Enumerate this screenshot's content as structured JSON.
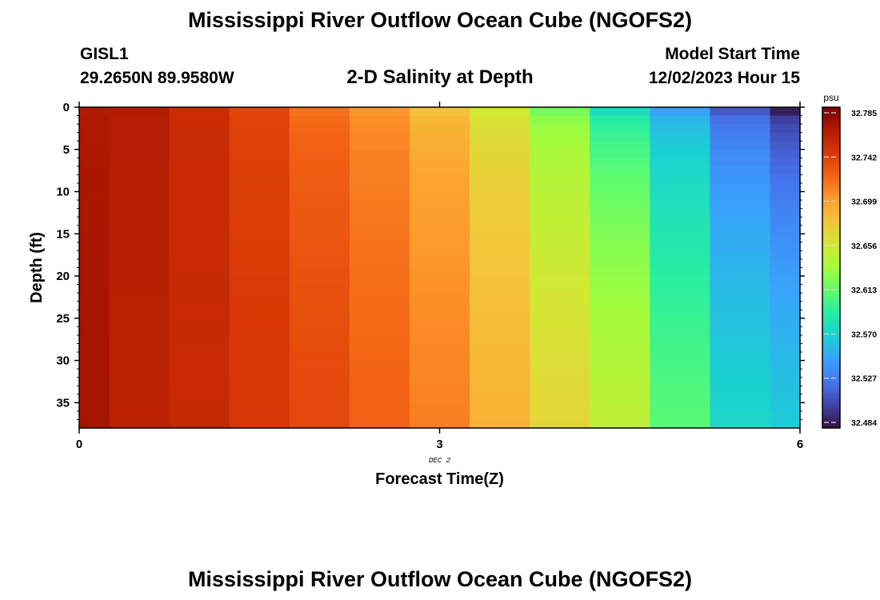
{
  "header": {
    "title": "Mississippi River Outflow Ocean Cube (NGOFS2)",
    "station": "GISL1",
    "coords": "29.2650N  89.9580W",
    "subtitle": "2-D Salinity at Depth",
    "model_start_label": "Model Start Time",
    "model_start_value": "12/02/2023 Hour 15"
  },
  "footer": {
    "title": "Mississippi River Outflow Ocean Cube (NGOFS2)"
  },
  "chart_data": {
    "type": "heatmap",
    "title": "2-D Salinity at Depth",
    "xlabel": "Forecast Time(Z)",
    "ylabel": "Depth (ft)",
    "x_ticks": [
      "0",
      "3",
      "6"
    ],
    "x_date_label": "DEC 2",
    "y_ticks": [
      "0",
      "5",
      "10",
      "15",
      "20",
      "25",
      "30",
      "35"
    ],
    "xlim": [
      0,
      6
    ],
    "ylim": [
      0,
      38
    ],
    "y_inverted": true,
    "colorbar": {
      "unit": "psu",
      "min": 32.484,
      "max": 32.785,
      "tick_labels": [
        "32.785",
        "32.742",
        "32.699",
        "32.656",
        "32.613",
        "32.570",
        "32.527",
        "32.484"
      ],
      "colors": [
        "#30123b",
        "#4145ab",
        "#4675ed",
        "#39a2fc",
        "#1bcfd4",
        "#24eca6",
        "#61fc6c",
        "#a4fc3b",
        "#d1e834",
        "#f3c63a",
        "#fe9b2d",
        "#f36315",
        "#d93806",
        "#b11901",
        "#7a0403"
      ]
    },
    "time_columns": [
      {
        "x": 0.0,
        "surface": 32.763,
        "bottom": 32.768
      },
      {
        "x": 0.5,
        "surface": 32.762,
        "bottom": 32.758
      },
      {
        "x": 1.0,
        "surface": 32.75,
        "bottom": 32.752
      },
      {
        "x": 1.5,
        "surface": 32.735,
        "bottom": 32.743
      },
      {
        "x": 2.0,
        "surface": 32.715,
        "bottom": 32.734
      },
      {
        "x": 2.5,
        "surface": 32.7,
        "bottom": 32.722
      },
      {
        "x": 3.0,
        "surface": 32.68,
        "bottom": 32.71
      },
      {
        "x": 3.5,
        "surface": 32.655,
        "bottom": 32.688
      },
      {
        "x": 4.0,
        "surface": 32.62,
        "bottom": 32.668
      },
      {
        "x": 4.5,
        "surface": 32.58,
        "bottom": 32.648
      },
      {
        "x": 5.0,
        "surface": 32.548,
        "bottom": 32.61
      },
      {
        "x": 5.5,
        "surface": 32.515,
        "bottom": 32.575
      },
      {
        "x": 6.0,
        "surface": 32.49,
        "bottom": 32.568
      }
    ]
  }
}
